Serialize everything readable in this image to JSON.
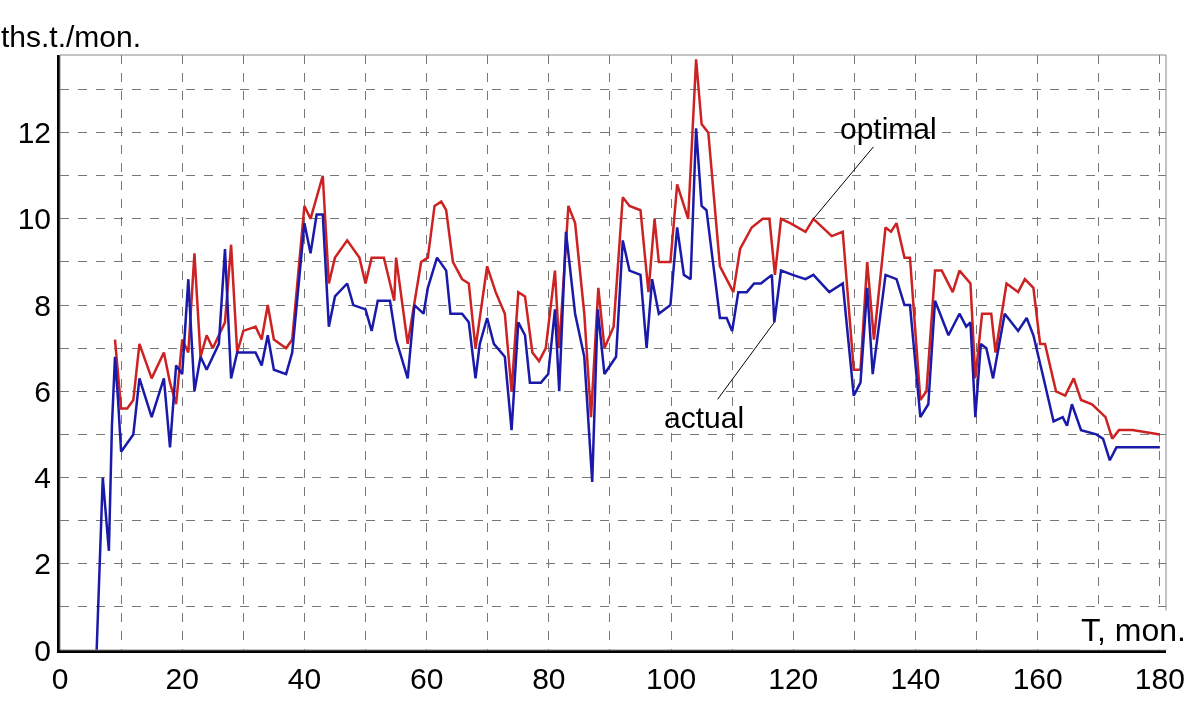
{
  "chart_data": {
    "type": "line",
    "xlabel": "T, mon.",
    "ylabel": "ths.t./mon.",
    "xlim": [
      0,
      181
    ],
    "ylim": [
      0,
      13.8
    ],
    "xticks": [
      0,
      {
        "value": 10,
        "label": null
      },
      20,
      {
        "value": 30,
        "label": null
      },
      40,
      {
        "value": 50,
        "label": null
      },
      60,
      {
        "value": 70,
        "label": null
      },
      80,
      {
        "value": 90,
        "label": null
      },
      100,
      {
        "value": 110,
        "label": null
      },
      120,
      {
        "value": 130,
        "label": null
      },
      140,
      {
        "value": 150,
        "label": null
      },
      160,
      {
        "value": 170,
        "label": null
      },
      180
    ],
    "yticks": [
      0,
      {
        "value": 1,
        "label": null
      },
      2,
      {
        "value": 3,
        "label": null
      },
      4,
      {
        "value": 5,
        "label": null
      },
      6,
      {
        "value": 7,
        "label": null
      },
      8,
      {
        "value": 9,
        "label": null
      },
      10,
      {
        "value": 11,
        "label": null
      },
      12,
      {
        "value": 13,
        "label": null
      }
    ],
    "grid": true,
    "line_style": "solid",
    "marker": "none",
    "series": [
      {
        "color": "#cc2222",
        "x": [
          9,
          10,
          11,
          12,
          13,
          15,
          17,
          18,
          19,
          20,
          21,
          22,
          23,
          24,
          25,
          27,
          28,
          29,
          30,
          32,
          33,
          34,
          35,
          37,
          38,
          40,
          41,
          43,
          44,
          45,
          47,
          49,
          50,
          51,
          53,
          54.7,
          55,
          56.9,
          59.1,
          60.2,
          61.3,
          62.4,
          63.2,
          64.3,
          65.8,
          66.9,
          68,
          69.9,
          71.3,
          72.8,
          73.9,
          75,
          76.1,
          77.3,
          78.4,
          79.5,
          81,
          81.7,
          83.2,
          84.3,
          85.8,
          86.9,
          88.1,
          89.1,
          90.6,
          92.1,
          93.2,
          95,
          96.3,
          97.3,
          98,
          99.9,
          101,
          102.8,
          104.1,
          105,
          106.1,
          108,
          110.2,
          111.3,
          113.2,
          115,
          116.1,
          117,
          118,
          119.5,
          122,
          123.3,
          126.3,
          128.1,
          129.9,
          131,
          132.1,
          133.2,
          135.1,
          136,
          136.9,
          138.2,
          139.1,
          140.8,
          141.8,
          143.2,
          144.3,
          146.1,
          147.2,
          149,
          149.8,
          150.9,
          152.4,
          153.1,
          154.9,
          156.8,
          157.9,
          159.3,
          160.4,
          161.2,
          163,
          164.5,
          165.9,
          167.1,
          168.9,
          171.1,
          172.2,
          173.3,
          175.5,
          180
        ],
        "values": [
          7.2,
          5.6,
          5.6,
          5.8,
          7.1,
          6.3,
          6.9,
          6.2,
          5.7,
          7.2,
          6.9,
          9.2,
          6.8,
          7.3,
          7.0,
          7.6,
          9.4,
          6.9,
          7.4,
          7.5,
          7.2,
          8.0,
          7.2,
          7.0,
          7.2,
          10.3,
          10.0,
          11.0,
          8.5,
          9.1,
          9.5,
          9.1,
          8.5,
          9.1,
          9.1,
          8.1,
          9.1,
          7.1,
          9.0,
          9.1,
          10.3,
          10.4,
          10.2,
          9.0,
          8.6,
          8.5,
          7.0,
          8.9,
          8.3,
          7.8,
          6.0,
          8.3,
          8.2,
          6.9,
          6.7,
          7.0,
          8.8,
          7.0,
          10.3,
          9.9,
          7.8,
          5.4,
          8.4,
          7.0,
          7.5,
          10.5,
          10.3,
          10.2,
          8.3,
          10.0,
          9.0,
          9.0,
          10.8,
          10.0,
          13.7,
          12.2,
          12.0,
          8.9,
          8.3,
          9.3,
          9.8,
          10.0,
          10.0,
          8.7,
          10.0,
          9.9,
          9.7,
          10.0,
          9.6,
          9.7,
          6.5,
          6.5,
          9.0,
          7.2,
          9.8,
          9.7,
          9.9,
          9.1,
          9.1,
          5.8,
          6.0,
          8.8,
          8.8,
          8.3,
          8.8,
          8.5,
          6.3,
          7.8,
          7.8,
          6.9,
          8.5,
          8.3,
          8.6,
          8.4,
          7.1,
          7.1,
          6.0,
          5.9,
          6.3,
          5.8,
          5.7,
          5.4,
          4.9,
          5.1,
          5.1,
          5.0
        ]
      },
      {
        "color": "#1a1aaa",
        "x": [
          6,
          6.5,
          7,
          8,
          8.5,
          9,
          9.5,
          10,
          12,
          13,
          15,
          17,
          18,
          19,
          20,
          21,
          22,
          23,
          24,
          26,
          27,
          28,
          29,
          32,
          33,
          34,
          35,
          37,
          38,
          40,
          41,
          42,
          43,
          44,
          45,
          47,
          48,
          50,
          51,
          52,
          54,
          55,
          56.9,
          58,
          59.5,
          60.2,
          61.7,
          63.2,
          63.9,
          65.8,
          66.9,
          68,
          68.7,
          69.9,
          71,
          72.8,
          73.9,
          75,
          76.1,
          76.9,
          78.7,
          79.9,
          81,
          81.7,
          82.8,
          84.3,
          85.8,
          87.1,
          88,
          89.1,
          91,
          92.1,
          93.2,
          95,
          96,
          96.9,
          98,
          99.9,
          101,
          102.1,
          103.2,
          104.1,
          105,
          105.8,
          108,
          109.1,
          110,
          111,
          112.4,
          113.6,
          114.7,
          116.5,
          116.9,
          118,
          119.9,
          122,
          123.3,
          125.9,
          128.1,
          129.9,
          131,
          132.1,
          133,
          135.1,
          136.9,
          138.2,
          139.1,
          140.8,
          142.1,
          143.2,
          145.4,
          147.2,
          148.3,
          149,
          149.8,
          150.7,
          151.6,
          152.7,
          154.6,
          156.8,
          158.2,
          159.3,
          160.8,
          162.6,
          164.1,
          164.8,
          165.6,
          167.1,
          169.6,
          170.7,
          171.8,
          172.9,
          180
        ],
        "values": [
          0,
          2,
          4.0,
          2.3,
          5.2,
          6.8,
          5.8,
          4.6,
          5.0,
          6.3,
          5.4,
          6.3,
          4.7,
          6.6,
          6.4,
          8.6,
          6.0,
          6.8,
          6.5,
          7.1,
          9.3,
          6.3,
          6.9,
          6.9,
          6.6,
          7.3,
          6.5,
          6.4,
          6.9,
          9.9,
          9.2,
          10.1,
          10.1,
          7.5,
          8.2,
          8.5,
          8.0,
          7.9,
          7.4,
          8.1,
          8.1,
          7.2,
          6.3,
          8.0,
          7.8,
          8.4,
          9.1,
          8.8,
          7.8,
          7.8,
          7.6,
          6.3,
          7.1,
          7.7,
          7.1,
          6.8,
          5.1,
          7.6,
          7.3,
          6.2,
          6.2,
          6.4,
          7.9,
          6.0,
          9.7,
          7.8,
          6.8,
          3.9,
          7.9,
          6.4,
          6.8,
          9.5,
          8.8,
          8.7,
          7.0,
          8.6,
          7.8,
          8.0,
          9.8,
          8.7,
          8.6,
          12.1,
          10.3,
          10.2,
          7.7,
          7.7,
          7.4,
          8.3,
          8.3,
          8.5,
          8.5,
          8.7,
          7.6,
          8.8,
          8.7,
          8.6,
          8.7,
          8.3,
          8.5,
          5.9,
          6.2,
          8.4,
          6.4,
          8.7,
          8.6,
          8.0,
          8.0,
          5.4,
          5.7,
          8.1,
          7.3,
          7.8,
          7.5,
          7.6,
          5.4,
          7.1,
          7.0,
          6.3,
          7.8,
          7.4,
          7.7,
          7.3,
          6.4,
          5.3,
          5.4,
          5.2,
          5.7,
          5.1,
          5.0,
          4.9,
          4.4,
          4.7,
          4.7
        ]
      }
    ],
    "annotations": [
      {
        "text": "optimal",
        "x": 123.3,
        "y": 10.0
      },
      {
        "text": "actual",
        "x": 116.9,
        "y": 7.6
      }
    ]
  }
}
